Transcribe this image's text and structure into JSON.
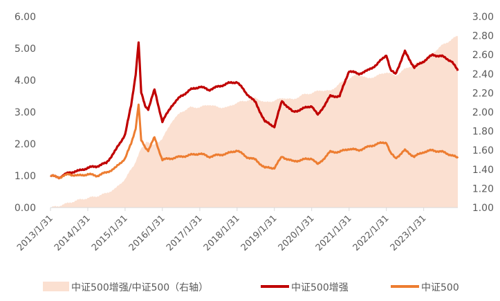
{
  "chart_data": {
    "type": "line",
    "left_axis": {
      "ticks": [
        "0.00",
        "1.00",
        "2.00",
        "3.00",
        "4.00",
        "5.00",
        "6.00"
      ],
      "ylim": [
        0,
        6
      ]
    },
    "right_axis": {
      "ticks": [
        "1.00",
        "1.20",
        "1.40",
        "1.60",
        "1.80",
        "2.00",
        "2.20",
        "2.40",
        "2.60",
        "2.80",
        "3.00"
      ],
      "ylim": [
        1.0,
        3.0
      ]
    },
    "x_ticks": [
      "2013/1/31",
      "2014/1/31",
      "2015/1/31",
      "2016/1/31",
      "2017/1/31",
      "2018/1/31",
      "2019/1/31",
      "2020/1/31",
      "2021/1/31",
      "2022/1/31",
      "2023/1/31"
    ],
    "xlim": [
      "2013/1/31",
      "2023/12/31"
    ],
    "legend_position": "bottom",
    "series": [
      {
        "name": "中证500增强/中证500（右轴）",
        "type": "area",
        "axis": "right",
        "color": "#FBE0D1",
        "x": [
          "2013/1/31",
          "2013/4/30",
          "2013/7/31",
          "2013/10/31",
          "2014/1/31",
          "2014/4/30",
          "2014/7/31",
          "2014/10/31",
          "2015/1/31",
          "2015/4/30",
          "2015/6/30",
          "2015/8/31",
          "2015/10/31",
          "2016/1/31",
          "2016/4/30",
          "2016/7/31",
          "2016/10/31",
          "2017/1/31",
          "2017/4/30",
          "2017/7/31",
          "2017/10/31",
          "2018/1/31",
          "2018/4/30",
          "2018/7/31",
          "2018/10/31",
          "2019/1/31",
          "2019/4/30",
          "2019/7/31",
          "2019/10/31",
          "2020/1/31",
          "2020/4/30",
          "2020/7/31",
          "2020/10/31",
          "2021/1/31",
          "2021/4/30",
          "2021/7/31",
          "2021/10/31",
          "2022/1/31",
          "2022/4/30",
          "2022/7/31",
          "2022/10/31",
          "2023/1/31",
          "2023/4/30",
          "2023/7/31",
          "2023/10/31",
          "2023/12/31"
        ],
        "values": [
          1.0,
          1.02,
          1.05,
          1.08,
          1.1,
          1.12,
          1.15,
          1.2,
          1.3,
          1.45,
          1.6,
          1.7,
          1.65,
          1.72,
          1.9,
          2.0,
          2.05,
          2.05,
          2.08,
          2.05,
          2.05,
          2.1,
          2.12,
          2.15,
          2.1,
          2.12,
          2.15,
          2.13,
          2.18,
          2.2,
          2.23,
          2.22,
          2.3,
          2.35,
          2.4,
          2.35,
          2.38,
          2.42,
          2.38,
          2.45,
          2.5,
          2.55,
          2.62,
          2.7,
          2.76,
          2.8
        ]
      },
      {
        "name": "中证500增强",
        "type": "line",
        "axis": "left",
        "color": "#C00000",
        "x": [
          "2013/1/31",
          "2013/4/30",
          "2013/7/31",
          "2013/10/31",
          "2014/1/31",
          "2014/4/30",
          "2014/7/31",
          "2014/10/31",
          "2015/1/31",
          "2015/3/31",
          "2015/5/15",
          "2015/6/12",
          "2015/7/8",
          "2015/8/15",
          "2015/9/15",
          "2015/11/15",
          "2016/1/31",
          "2016/4/30",
          "2016/7/31",
          "2016/10/31",
          "2017/1/31",
          "2017/4/30",
          "2017/7/31",
          "2017/10/31",
          "2018/1/31",
          "2018/4/30",
          "2018/7/31",
          "2018/10/31",
          "2019/1/31",
          "2019/4/15",
          "2019/7/31",
          "2019/10/31",
          "2020/1/31",
          "2020/3/31",
          "2020/7/31",
          "2020/10/31",
          "2021/1/31",
          "2021/4/30",
          "2021/7/31",
          "2021/10/31",
          "2022/1/31",
          "2022/3/15",
          "2022/4/30",
          "2022/7/31",
          "2022/10/31",
          "2023/1/31",
          "2023/4/30",
          "2023/7/31",
          "2023/10/31",
          "2023/12/31"
        ],
        "values": [
          1.0,
          0.95,
          1.1,
          1.15,
          1.25,
          1.3,
          1.4,
          1.8,
          2.3,
          3.2,
          4.2,
          5.2,
          3.6,
          3.2,
          3.1,
          3.7,
          2.7,
          3.2,
          3.5,
          3.7,
          3.8,
          3.7,
          3.8,
          3.9,
          3.95,
          3.6,
          3.3,
          2.7,
          2.55,
          3.35,
          3.0,
          3.1,
          3.2,
          2.9,
          3.5,
          3.5,
          4.3,
          4.2,
          4.3,
          4.5,
          4.8,
          4.3,
          4.2,
          4.9,
          4.4,
          4.6,
          4.8,
          4.75,
          4.6,
          4.3
        ]
      },
      {
        "name": "中证500",
        "type": "line",
        "axis": "left",
        "color": "#ED7D31",
        "x": [
          "2013/1/31",
          "2013/4/30",
          "2013/7/31",
          "2013/10/31",
          "2014/1/31",
          "2014/4/30",
          "2014/7/31",
          "2014/10/31",
          "2015/1/31",
          "2015/3/31",
          "2015/5/15",
          "2015/6/12",
          "2015/7/8",
          "2015/8/15",
          "2015/9/15",
          "2015/11/15",
          "2016/1/31",
          "2016/4/30",
          "2016/7/31",
          "2016/10/31",
          "2017/1/31",
          "2017/4/30",
          "2017/7/31",
          "2017/10/31",
          "2018/1/31",
          "2018/4/30",
          "2018/7/31",
          "2018/10/31",
          "2019/1/31",
          "2019/4/15",
          "2019/7/31",
          "2019/10/31",
          "2020/1/31",
          "2020/3/31",
          "2020/7/31",
          "2020/10/31",
          "2021/1/31",
          "2021/4/30",
          "2021/7/31",
          "2021/10/31",
          "2022/1/31",
          "2022/3/15",
          "2022/4/30",
          "2022/7/31",
          "2022/10/31",
          "2023/1/31",
          "2023/4/30",
          "2023/7/31",
          "2023/10/31",
          "2023/12/31"
        ],
        "values": [
          1.0,
          0.95,
          1.05,
          1.0,
          1.05,
          1.0,
          1.1,
          1.25,
          1.55,
          2.0,
          2.5,
          3.25,
          2.1,
          1.9,
          1.8,
          2.2,
          1.5,
          1.55,
          1.6,
          1.65,
          1.7,
          1.6,
          1.65,
          1.7,
          1.8,
          1.6,
          1.5,
          1.25,
          1.25,
          1.6,
          1.45,
          1.5,
          1.55,
          1.35,
          1.75,
          1.75,
          1.85,
          1.8,
          1.9,
          2.0,
          2.05,
          1.7,
          1.55,
          1.8,
          1.6,
          1.75,
          1.8,
          1.75,
          1.65,
          1.55
        ]
      }
    ]
  }
}
